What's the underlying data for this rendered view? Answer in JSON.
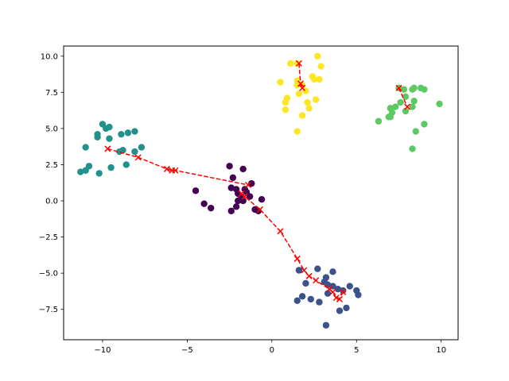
{
  "chart_data": {
    "type": "scatter",
    "title": "",
    "xlabel": "",
    "ylabel": "",
    "xlim": [
      -12.3,
      11.0
    ],
    "ylim": [
      -9.6,
      10.7
    ],
    "grid": false,
    "legend": "none",
    "xticks": [
      -10,
      -5,
      0,
      5,
      10
    ],
    "yticks": [
      -7.5,
      -5.0,
      -2.5,
      0.0,
      2.5,
      5.0,
      7.5,
      10.0
    ],
    "xtick_labels": [
      "−10",
      "−5",
      "0",
      "5",
      "10"
    ],
    "ytick_labels": [
      "−7.5",
      "−5.0",
      "−2.5",
      "0.0",
      "2.5",
      "5.0",
      "7.5",
      "10.0"
    ],
    "clusters": [
      {
        "color": "#440154",
        "points": [
          [
            -2.5,
            2.4
          ],
          [
            -1.7,
            2.2
          ],
          [
            -4.5,
            0.7
          ],
          [
            -2.3,
            1.6
          ],
          [
            -2.4,
            0.9
          ],
          [
            -2.1,
            0.8
          ],
          [
            -2.0,
            0.5
          ],
          [
            -1.6,
            0.8
          ],
          [
            -1.8,
            0.3
          ],
          [
            -1.5,
            0.6
          ],
          [
            -1.2,
            1.2
          ],
          [
            -1.3,
            0.3
          ],
          [
            -2.0,
            0.0
          ],
          [
            -4.0,
            -0.2
          ],
          [
            -3.6,
            -0.5
          ],
          [
            -2.4,
            -0.7
          ],
          [
            -2.1,
            -0.4
          ],
          [
            -1.0,
            -0.6
          ],
          [
            -0.8,
            -0.7
          ],
          [
            -0.6,
            0.1
          ],
          [
            -1.7,
            0.0
          ]
        ]
      },
      {
        "color": "#3b528b",
        "points": [
          [
            1.6,
            -4.8
          ],
          [
            2.7,
            -4.7
          ],
          [
            3.2,
            -5.3
          ],
          [
            3.6,
            -4.9
          ],
          [
            3.1,
            -5.6
          ],
          [
            2.0,
            -5.7
          ],
          [
            3.3,
            -5.8
          ],
          [
            3.6,
            -5.9
          ],
          [
            4.6,
            -5.9
          ],
          [
            5.0,
            -6.2
          ],
          [
            5.1,
            -6.5
          ],
          [
            3.9,
            -6.1
          ],
          [
            4.2,
            -6.2
          ],
          [
            3.3,
            -6.4
          ],
          [
            1.8,
            -6.6
          ],
          [
            2.3,
            -6.8
          ],
          [
            2.8,
            -7.0
          ],
          [
            1.5,
            -6.9
          ],
          [
            4.4,
            -7.4
          ],
          [
            4.0,
            -7.6
          ],
          [
            3.2,
            -8.6
          ]
        ]
      },
      {
        "color": "#21918c",
        "points": [
          [
            -10.0,
            5.3
          ],
          [
            -9.6,
            5.1
          ],
          [
            -9.8,
            5.0
          ],
          [
            -10.3,
            4.6
          ],
          [
            -10.3,
            4.4
          ],
          [
            -8.9,
            4.6
          ],
          [
            -8.5,
            4.7
          ],
          [
            -8.1,
            4.8
          ],
          [
            -9.6,
            4.3
          ],
          [
            -11.0,
            3.7
          ],
          [
            -8.1,
            3.4
          ],
          [
            -7.7,
            3.7
          ],
          [
            -9.0,
            3.4
          ],
          [
            -8.8,
            3.5
          ],
          [
            -8.6,
            2.5
          ],
          [
            -11.3,
            2.0
          ],
          [
            -11.0,
            2.1
          ],
          [
            -10.8,
            2.4
          ],
          [
            -10.2,
            1.9
          ],
          [
            -9.5,
            2.3
          ]
        ]
      },
      {
        "color": "#5ec962",
        "points": [
          [
            7.5,
            7.8
          ],
          [
            7.8,
            7.7
          ],
          [
            8.4,
            7.8
          ],
          [
            8.3,
            7.7
          ],
          [
            8.8,
            7.8
          ],
          [
            9.0,
            7.7
          ],
          [
            7.9,
            7.2
          ],
          [
            8.4,
            6.9
          ],
          [
            9.9,
            6.7
          ],
          [
            7.6,
            6.8
          ],
          [
            7.3,
            6.5
          ],
          [
            8.3,
            6.5
          ],
          [
            7.0,
            6.4
          ],
          [
            7.9,
            6.2
          ],
          [
            7.1,
            6.1
          ],
          [
            6.9,
            5.8
          ],
          [
            7.0,
            5.8
          ],
          [
            6.3,
            5.5
          ],
          [
            9.0,
            5.3
          ],
          [
            8.5,
            4.8
          ],
          [
            8.3,
            3.6
          ]
        ]
      },
      {
        "color": "#fde725",
        "points": [
          [
            2.7,
            10.0
          ],
          [
            1.1,
            9.5
          ],
          [
            1.5,
            9.5
          ],
          [
            2.9,
            9.3
          ],
          [
            2.4,
            8.6
          ],
          [
            2.5,
            8.4
          ],
          [
            2.8,
            8.4
          ],
          [
            0.5,
            8.2
          ],
          [
            1.5,
            8.3
          ],
          [
            1.5,
            8.0
          ],
          [
            1.8,
            8.0
          ],
          [
            2.0,
            7.6
          ],
          [
            1.6,
            7.4
          ],
          [
            0.9,
            7.1
          ],
          [
            0.8,
            6.8
          ],
          [
            2.1,
            6.8
          ],
          [
            2.6,
            7.0
          ],
          [
            0.8,
            6.3
          ],
          [
            2.2,
            6.4
          ],
          [
            1.8,
            5.9
          ],
          [
            1.5,
            4.8
          ]
        ]
      }
    ],
    "centroid_paths": [
      {
        "color": "#ff0000",
        "line": "dashed",
        "marker": "x",
        "points": [
          [
            -9.7,
            3.6
          ],
          [
            -7.9,
            3.0
          ],
          [
            -6.2,
            2.2
          ],
          [
            -5.9,
            2.1
          ],
          [
            -5.7,
            2.1
          ],
          [
            -1.4,
            1.1
          ]
        ]
      },
      {
        "color": "#ff0000",
        "line": "dashed",
        "marker": "x",
        "points": [
          [
            -1.8,
            0.5
          ],
          [
            -1.6,
            0.3
          ],
          [
            -0.7,
            -0.6
          ],
          [
            0.5,
            -2.1
          ],
          [
            1.5,
            -4.0
          ],
          [
            1.9,
            -4.8
          ],
          [
            2.2,
            -5.2
          ],
          [
            2.6,
            -5.5
          ],
          [
            3.4,
            -6.1
          ],
          [
            3.6,
            -6.3
          ],
          [
            3.8,
            -6.7
          ],
          [
            4.0,
            -6.8
          ],
          [
            4.2,
            -6.3
          ]
        ]
      },
      {
        "color": "#ff0000",
        "line": "dashed",
        "marker": "x",
        "points": [
          [
            1.6,
            9.5
          ],
          [
            1.7,
            8.1
          ],
          [
            1.8,
            7.8
          ]
        ]
      },
      {
        "color": "#ff0000",
        "line": "dashed",
        "marker": "x",
        "points": [
          [
            7.5,
            7.8
          ],
          [
            8.0,
            6.5
          ]
        ]
      }
    ]
  }
}
